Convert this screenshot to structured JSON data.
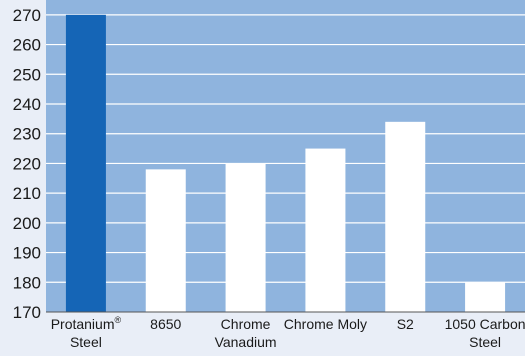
{
  "chart_data": {
    "type": "bar",
    "title": "",
    "xlabel": "",
    "ylabel": "",
    "categories": [
      {
        "lines": [
          "Protanium",
          "Steel"
        ],
        "sup": "®"
      },
      {
        "lines": [
          "8650"
        ]
      },
      {
        "lines": [
          "Chrome",
          "Vanadium"
        ]
      },
      {
        "lines": [
          "Chrome Moly"
        ]
      },
      {
        "lines": [
          "S2"
        ]
      },
      {
        "lines": [
          "1050 Carbon",
          "Steel"
        ]
      }
    ],
    "values": [
      270,
      218,
      220,
      225,
      234,
      180
    ],
    "ylim": [
      170,
      275
    ],
    "yticks": [
      170,
      180,
      190,
      200,
      210,
      220,
      230,
      240,
      250,
      260,
      270
    ],
    "grid": true,
    "legend": "none",
    "colors": {
      "plot_background": "#8fb4de",
      "grid": "#ffffff",
      "highlight_bar": "#1565b6",
      "bar": "#ffffff",
      "axis": "#555555"
    },
    "highlight_index": 0
  }
}
